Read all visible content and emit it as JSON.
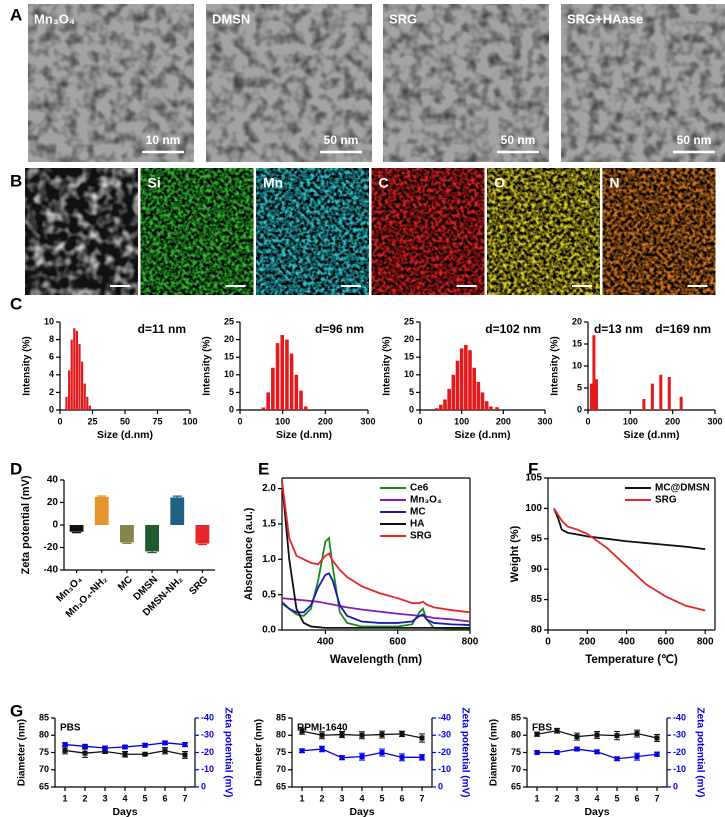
{
  "panel_labels": [
    "A",
    "B",
    "C",
    "D",
    "E",
    "F",
    "G"
  ],
  "tem_images": [
    {
      "label": "Mn₃O₄",
      "scale_bar": "10 nm"
    },
    {
      "label": "DMSN",
      "scale_bar": "50 nm"
    },
    {
      "label": "SRG",
      "scale_bar": "50 nm"
    },
    {
      "label": "SRG+HAase",
      "scale_bar": "50 nm"
    }
  ],
  "eds_maps": [
    {
      "label": "Si",
      "color": "#2fc02f"
    },
    {
      "label": "Mn",
      "color": "#2cc6d2"
    },
    {
      "label": "C",
      "color": "#e02020"
    },
    {
      "label": "O",
      "color": "#e0d020"
    },
    {
      "label": "N",
      "color": "#d8781e"
    }
  ],
  "chart_data": [
    {
      "type": "bar",
      "x": [
        5,
        7,
        9,
        11,
        13,
        15,
        17,
        19,
        21,
        23
      ],
      "values": [
        1.5,
        4.5,
        8,
        9.3,
        9,
        7.5,
        5.5,
        3,
        1.5,
        0.5
      ],
      "color": "#e31a1c",
      "xlim": [
        0,
        100
      ],
      "xticks": [
        0,
        25,
        50,
        75,
        100
      ],
      "ylim": [
        0,
        10
      ],
      "yticks": [
        0,
        2,
        4,
        6,
        8,
        10
      ],
      "xlabel": "Size (d.nm)",
      "ylabel": "Intensity (%)",
      "annotations": [
        "d=11 nm"
      ]
    },
    {
      "type": "bar",
      "x": [
        55,
        66,
        77,
        88,
        99,
        110,
        121,
        132,
        143,
        154
      ],
      "values": [
        0.7,
        5,
        12,
        19,
        21.3,
        20,
        16,
        10,
        5.5,
        1
      ],
      "color": "#e31a1c",
      "xlim": [
        0,
        300
      ],
      "xticks": [
        0,
        100,
        200,
        300
      ],
      "ylim": [
        0,
        25
      ],
      "yticks": [
        0,
        5,
        10,
        15,
        20,
        25
      ],
      "xlabel": "Size (d.nm)",
      "ylabel": "Intensity (%)",
      "annotations": [
        "d=96 nm"
      ]
    },
    {
      "type": "bar",
      "x": [
        40,
        50,
        60,
        70,
        80,
        90,
        100,
        110,
        120,
        130,
        140,
        150,
        160,
        170,
        185
      ],
      "values": [
        0.5,
        1.5,
        3,
        6,
        10,
        14,
        17.5,
        18.5,
        17,
        12,
        8,
        5,
        2.5,
        1,
        0.8
      ],
      "color": "#e31a1c",
      "xlim": [
        0,
        300
      ],
      "xticks": [
        0,
        100,
        200,
        300
      ],
      "ylim": [
        0,
        25
      ],
      "yticks": [
        0,
        5,
        10,
        15,
        20,
        25
      ],
      "xlabel": "Size (d.nm)",
      "ylabel": "Intensity (%)",
      "annotations": [
        "d=102 nm"
      ]
    },
    {
      "type": "bar",
      "x": [
        8,
        14,
        20,
        132,
        152,
        172,
        192,
        220
      ],
      "values": [
        6,
        17,
        7,
        2.5,
        6,
        8,
        7.5,
        3
      ],
      "color": "#e31a1c",
      "xlim": [
        0,
        300
      ],
      "xticks": [
        0,
        100,
        200,
        300
      ],
      "ylim": [
        0,
        20
      ],
      "yticks": [
        0,
        5,
        10,
        15,
        20
      ],
      "xlabel": "Size (d.nm)",
      "ylabel": "Intensity (%)",
      "annotations": [
        "d=13 nm",
        "d=169 nm"
      ]
    },
    {
      "type": "bar",
      "categories": [
        "Mn₃O₄",
        "Mn₃O₄-NH₂",
        "MC",
        "DMSN",
        "DMSN-NH₂",
        "SRG"
      ],
      "values": [
        -6,
        25,
        -15.5,
        -23.5,
        24.5,
        -16.5
      ],
      "errors": [
        0.8,
        0.8,
        0.8,
        1,
        1.2,
        0.8
      ],
      "colors": [
        "#111111",
        "#e6952c",
        "#85854a",
        "#1d5c2e",
        "#1e6482",
        "#e8262a"
      ],
      "ylim": [
        -40,
        40
      ],
      "yticks": [
        -40,
        -20,
        0,
        20,
        40
      ],
      "ylabel": "Zeta potential (mV)"
    },
    {
      "type": "line",
      "x": [
        280,
        300,
        320,
        340,
        360,
        380,
        400,
        410,
        420,
        440,
        460,
        500,
        550,
        600,
        640,
        660,
        670,
        680,
        700,
        750,
        800
      ],
      "series": [
        {
          "name": "Ce6",
          "color": "#1a8a1a",
          "values": [
            0.4,
            0.3,
            0.22,
            0.2,
            0.3,
            0.7,
            1.25,
            1.3,
            0.9,
            0.25,
            0.1,
            0.05,
            0.05,
            0.05,
            0.08,
            0.25,
            0.3,
            0.15,
            0.03,
            0.02,
            0.02
          ]
        },
        {
          "name": "Mn₃O₄",
          "color": "#8a1ab5",
          "values": [
            0.45,
            0.44,
            0.43,
            0.42,
            0.41,
            0.4,
            0.38,
            0.37,
            0.36,
            0.34,
            0.32,
            0.29,
            0.26,
            0.23,
            0.21,
            0.2,
            0.2,
            0.19,
            0.17,
            0.15,
            0.12
          ]
        },
        {
          "name": "MC",
          "color": "#1a1ab5",
          "values": [
            0.38,
            0.3,
            0.25,
            0.25,
            0.35,
            0.6,
            0.78,
            0.8,
            0.7,
            0.35,
            0.2,
            0.12,
            0.1,
            0.1,
            0.12,
            0.2,
            0.22,
            0.15,
            0.1,
            0.08,
            0.07
          ]
        },
        {
          "name": "HA",
          "color": "#111111",
          "values": [
            2.1,
            1.0,
            0.3,
            0.1,
            0.05,
            0.04,
            0.03,
            0.03,
            0.03,
            0.03,
            0.03,
            0.03,
            0.03,
            0.03,
            0.03,
            0.03,
            0.03,
            0.03,
            0.03,
            0.03,
            0.03
          ]
        },
        {
          "name": "SRG",
          "color": "#e8262a",
          "values": [
            2.1,
            1.3,
            1.05,
            1.0,
            0.95,
            0.93,
            1.05,
            1.08,
            0.98,
            0.85,
            0.75,
            0.62,
            0.52,
            0.45,
            0.38,
            0.38,
            0.4,
            0.36,
            0.32,
            0.28,
            0.25
          ]
        }
      ],
      "xlim": [
        280,
        800
      ],
      "xticks": [
        400,
        600,
        800
      ],
      "ylim": [
        0,
        2.15
      ],
      "yticks": [
        {
          "value": 0,
          "label": "0.0"
        },
        {
          "value": 0.5,
          "label": "0.5"
        },
        {
          "value": 1,
          "label": "1.0"
        },
        {
          "value": 1.5,
          "label": "1.5"
        },
        {
          "value": 2,
          "label": "2.0"
        }
      ],
      "xlabel": "Wavelength (nm)",
      "ylabel": "Absorbance (a.u.)",
      "legend": "upper right"
    },
    {
      "type": "line",
      "x": [
        30,
        50,
        70,
        100,
        150,
        200,
        300,
        400,
        500,
        600,
        700,
        800
      ],
      "series": [
        {
          "name": "MC@DMSN",
          "color": "#111111",
          "values": [
            100,
            98.5,
            96.5,
            96,
            95.7,
            95.4,
            95,
            94.6,
            94.3,
            94,
            93.7,
            93.3
          ]
        },
        {
          "name": "SRG",
          "color": "#e8262a",
          "values": [
            100,
            99,
            98,
            97,
            96.5,
            95.8,
            93.5,
            90.5,
            87.5,
            85.5,
            84,
            83.2
          ]
        }
      ],
      "xlim": [
        0,
        850
      ],
      "xticks": [
        0,
        200,
        400,
        600,
        800
      ],
      "ylim": [
        80,
        105
      ],
      "yticks": [
        80,
        85,
        90,
        95,
        100,
        105
      ],
      "xlabel": "Temperature (℃)",
      "ylabel": "Weight (%)",
      "legend": "upper right"
    },
    {
      "type": "line",
      "title": "PBS",
      "x": [
        1,
        2,
        3,
        4,
        5,
        6,
        7
      ],
      "markers": true,
      "series": [
        {
          "color": "#111111",
          "values": [
            75.6,
            74.8,
            75.3,
            74.5,
            74.5,
            75.5,
            74.3
          ],
          "errors": [
            1,
            1.2,
            0.5,
            0.8,
            0.3,
            0.9,
            1
          ]
        },
        {
          "color": "#0000ee",
          "axis": "y2",
          "values": [
            -24.6,
            -23.6,
            -22.6,
            -23.2,
            -24.2,
            -25.6,
            -24.6
          ],
          "errors": [
            1,
            0.8,
            1.2,
            0.8,
            1,
            1,
            1.2
          ]
        }
      ],
      "xlim": [
        0.5,
        7.5
      ],
      "xticks": [
        1,
        2,
        3,
        4,
        5,
        6,
        7
      ],
      "ylim": [
        65,
        85
      ],
      "yticks": [
        65,
        70,
        75,
        80,
        85
      ],
      "y2lim": [
        0,
        -40
      ],
      "y2ticks": [
        0,
        -10,
        -20,
        -30,
        -40
      ],
      "xlabel": "Days",
      "ylabel": "Diameter (nm)",
      "y2label": "Zeta potential (mV)"
    },
    {
      "type": "line",
      "title": "RPMI-1640",
      "x": [
        1,
        2,
        3,
        4,
        5,
        6,
        7
      ],
      "markers": true,
      "series": [
        {
          "color": "#111111",
          "values": [
            81.2,
            80,
            80.2,
            80,
            80.2,
            80.4,
            79.2
          ],
          "errors": [
            0.9,
            1,
            0.9,
            1,
            1,
            0.8,
            1.2
          ]
        },
        {
          "color": "#0000ee",
          "axis": "y2",
          "values": [
            -21,
            -22,
            -17,
            -17.6,
            -20,
            -17.2,
            -17.2
          ],
          "errors": [
            1,
            1.6,
            1.2,
            2,
            2,
            2,
            1.6
          ]
        }
      ],
      "xlim": [
        0.5,
        7.5
      ],
      "xticks": [
        1,
        2,
        3,
        4,
        5,
        6,
        7
      ],
      "ylim": [
        65,
        85
      ],
      "yticks": [
        65,
        70,
        75,
        80,
        85
      ],
      "y2lim": [
        0,
        -40
      ],
      "y2ticks": [
        0,
        -10,
        -20,
        -30,
        -40
      ],
      "xlabel": "Days",
      "ylabel": "Diameter (nm)",
      "y2label": "Zeta potential (mV)"
    },
    {
      "type": "line",
      "title": "FBS",
      "x": [
        1,
        2,
        3,
        4,
        5,
        6,
        7
      ],
      "markers": true,
      "series": [
        {
          "color": "#111111",
          "values": [
            80.3,
            81.3,
            79.6,
            80.1,
            79.9,
            80.5,
            79.2
          ],
          "errors": [
            0.6,
            0.7,
            1,
            1,
            1.2,
            1,
            1
          ]
        },
        {
          "color": "#0000ee",
          "axis": "y2",
          "values": [
            -20,
            -20,
            -22,
            -20.4,
            -16.4,
            -17.6,
            -19
          ],
          "errors": [
            0.8,
            0.8,
            1,
            1,
            1,
            2,
            1.2
          ]
        }
      ],
      "xlim": [
        0.5,
        7.5
      ],
      "xticks": [
        1,
        2,
        3,
        4,
        5,
        6,
        7
      ],
      "ylim": [
        65,
        85
      ],
      "yticks": [
        65,
        70,
        75,
        80,
        85
      ],
      "y2lim": [
        0,
        -40
      ],
      "y2ticks": [
        0,
        -10,
        -20,
        -30,
        -40
      ],
      "xlabel": "Days",
      "ylabel": "Diameter (nm)",
      "y2label": "Zeta potential (mV)"
    }
  ]
}
